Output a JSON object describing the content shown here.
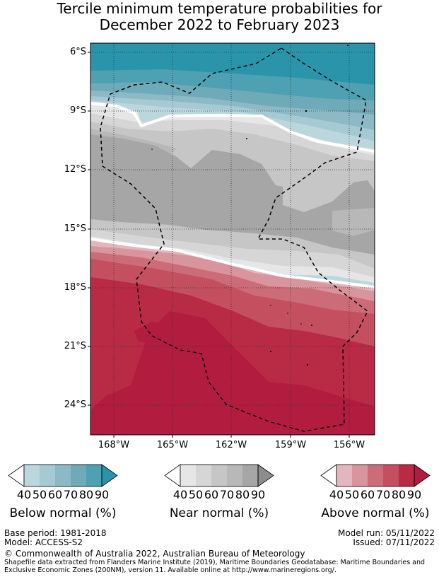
{
  "title_line1": "Tercile minimum temperature probabilities for",
  "title_line2": "December 2022 to February 2023",
  "lat_labels": [
    "6°S",
    "9°S",
    "12°S",
    "15°S",
    "18°S",
    "21°S",
    "24°S"
  ],
  "lon_labels": [
    "168°W",
    "165°W",
    "162°W",
    "159°W",
    "156°W"
  ],
  "legends": [
    {
      "title": "Below normal (%)",
      "ticks": [
        "40",
        "50",
        "60",
        "70",
        "80",
        "90"
      ],
      "colors": [
        "#ffffff",
        "#bcd6dd",
        "#a5cad3",
        "#8db9c6",
        "#6faab9",
        "#4ea0b3",
        "#2a95aa"
      ]
    },
    {
      "title": "Near normal (%)",
      "ticks": [
        "40",
        "50",
        "60",
        "70",
        "80",
        "90"
      ],
      "colors": [
        "#ffffff",
        "#e6e6e6",
        "#d6d6d6",
        "#c6c6c6",
        "#b8b8b8",
        "#a6a6a6",
        "#8c8c8c"
      ]
    },
    {
      "title": "Above normal (%)",
      "ticks": [
        "40",
        "50",
        "60",
        "70",
        "80",
        "90"
      ],
      "colors": [
        "#ffffff",
        "#e3b6bf",
        "#d8959e",
        "#cd6c79",
        "#c44f5f",
        "#b92a44",
        "#b21c3e"
      ]
    }
  ],
  "footer": {
    "base_period": "Base period: 1981-2018",
    "model": "Model: ACCESS-S2",
    "model_run": "Model run: 05/11/2022",
    "issued": "Issued: 07/11/2022",
    "copyright": "© Commonwealth of Australia 2022, Australian Bureau of Meteorology",
    "shapefile_line1": "Shapefile data extracted from Flanders Marine Institute (2019), Maritime Boundaries Geodatabase: Maritime Boundaries and",
    "shapefile_line2": "Exclusive Economic Zones (200NM), version 11. Available online at http://www.marineregions.org/."
  }
}
